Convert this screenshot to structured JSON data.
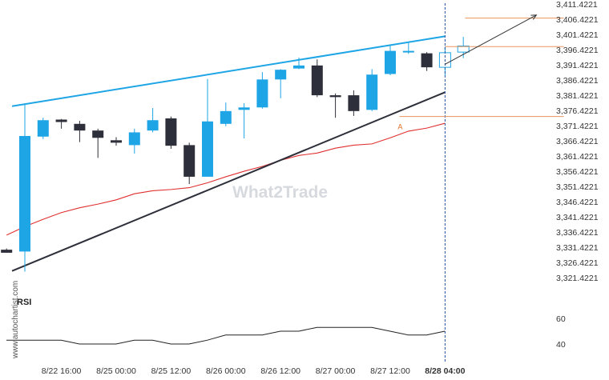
{
  "watermark": {
    "brand": "What2Trade",
    "side_text": "www.autochartist.com"
  },
  "rsi": {
    "title": "RSI",
    "ticks": [
      60,
      40
    ],
    "ylim": [
      30,
      70
    ],
    "values": [
      43,
      43,
      43,
      43,
      40,
      40,
      40,
      43,
      43,
      40,
      40,
      43,
      47,
      47,
      47,
      50,
      50,
      53,
      53,
      53,
      53,
      50,
      47,
      47,
      50
    ]
  },
  "chart_data": {
    "type": "candlestick",
    "ylim": [
      3317.4221,
      3413.4221
    ],
    "y_ticks": [
      "3,411.4221",
      "3,406.4221",
      "3,401.4221",
      "3,396.4221",
      "3,391.4221",
      "3,386.4221",
      "3,381.4221",
      "3,376.4221",
      "3,371.4221",
      "3,366.4221",
      "3,361.4221",
      "3,356.4221",
      "3,351.4221",
      "3,346.4221",
      "3,341.4221",
      "3,336.4221",
      "3,331.4221",
      "3,326.4221",
      "3,321.4221"
    ],
    "x_ticks": [
      {
        "label": "8/22 16:00",
        "index": 2
      },
      {
        "label": "8/25 00:00",
        "index": 5
      },
      {
        "label": "8/25 12:00",
        "index": 8
      },
      {
        "label": "8/26 00:00",
        "index": 11
      },
      {
        "label": "8/26 12:00",
        "index": 14
      },
      {
        "label": "8/27 00:00",
        "index": 17
      },
      {
        "label": "8/27 12:00",
        "index": 20
      },
      {
        "label": "8/28 04:00",
        "index": 23,
        "bold": true
      }
    ],
    "colors": {
      "up": "#1ea5e6",
      "down": "#2d2f3a",
      "ma": "#e03030",
      "upper_line": "#1ea5e6",
      "lower_line": "#2d2f3a",
      "level": "#e8955c",
      "projection": "#333333",
      "current": "#1e4fa0"
    },
    "candles": [
      {
        "o": 3330.6,
        "h": 3331.0,
        "l": 3329.6,
        "c": 3329.6
      },
      {
        "o": 3330.0,
        "h": 3378.6,
        "l": 3323.4,
        "c": 3368.0
      },
      {
        "o": 3367.8,
        "h": 3374.0,
        "l": 3367.0,
        "c": 3373.2
      },
      {
        "o": 3373.4,
        "h": 3373.6,
        "l": 3370.4,
        "c": 3372.6
      },
      {
        "o": 3372.0,
        "h": 3373.0,
        "l": 3366.0,
        "c": 3369.8
      },
      {
        "o": 3369.8,
        "h": 3370.4,
        "l": 3360.8,
        "c": 3367.4
      },
      {
        "o": 3366.6,
        "h": 3367.6,
        "l": 3364.8,
        "c": 3365.8
      },
      {
        "o": 3365.0,
        "h": 3370.4,
        "l": 3362.2,
        "c": 3369.2
      },
      {
        "o": 3369.8,
        "h": 3377.2,
        "l": 3369.2,
        "c": 3373.2
      },
      {
        "o": 3373.8,
        "h": 3374.4,
        "l": 3363.8,
        "c": 3364.8
      },
      {
        "o": 3365.0,
        "h": 3365.8,
        "l": 3352.2,
        "c": 3354.6
      },
      {
        "o": 3354.6,
        "h": 3386.8,
        "l": 3354.6,
        "c": 3372.8
      },
      {
        "o": 3372.0,
        "h": 3379.0,
        "l": 3371.2,
        "c": 3376.2
      },
      {
        "o": 3376.6,
        "h": 3378.8,
        "l": 3367.2,
        "c": 3377.4
      },
      {
        "o": 3377.4,
        "h": 3389.0,
        "l": 3377.0,
        "c": 3386.6
      },
      {
        "o": 3386.6,
        "h": 3390.0,
        "l": 3380.4,
        "c": 3389.8
      },
      {
        "o": 3390.2,
        "h": 3393.8,
        "l": 3390.0,
        "c": 3391.2
      },
      {
        "o": 3391.2,
        "h": 3393.2,
        "l": 3380.8,
        "c": 3381.4
      },
      {
        "o": 3381.4,
        "h": 3382.0,
        "l": 3374.0,
        "c": 3380.8
      },
      {
        "o": 3381.4,
        "h": 3383.0,
        "l": 3374.6,
        "c": 3376.2
      },
      {
        "o": 3376.6,
        "h": 3390.0,
        "l": 3376.2,
        "c": 3388.2
      },
      {
        "o": 3388.4,
        "h": 3398.0,
        "l": 3388.0,
        "c": 3396.0
      },
      {
        "o": 3396.0,
        "h": 3398.8,
        "l": 3395.0,
        "c": 3396.0
      },
      {
        "o": 3395.2,
        "h": 3395.6,
        "l": 3389.4,
        "c": 3390.6
      },
      {
        "o": 3390.6,
        "h": 3397.4,
        "l": 3388.0,
        "c": 3395.4
      },
      {
        "o": 3395.6,
        "h": 3400.6,
        "l": 3393.6,
        "c": 3397.6
      }
    ],
    "moving_average": [
      3335.4,
      3338.2,
      3340.6,
      3342.8,
      3344.4,
      3345.6,
      3347.0,
      3349.0,
      3350.0,
      3350.4,
      3351.0,
      3352.6,
      3354.6,
      3356.4,
      3358.0,
      3360.0,
      3361.6,
      3362.4,
      3364.0,
      3365.0,
      3365.4,
      3367.4,
      3369.6,
      3370.6,
      3372.2
    ],
    "trendlines": [
      {
        "name": "resistance",
        "from": [
          -0.7,
          3377.8
        ],
        "to": [
          23,
          3400.8
        ]
      },
      {
        "name": "support",
        "from": [
          -0.7,
          3323.6
        ],
        "to": [
          23,
          3382.4
        ]
      }
    ],
    "levels": [
      {
        "name": "target",
        "value": 3406.8,
        "from_index": 24.1,
        "to_index": 29.5
      },
      {
        "name": "entry",
        "value": 3397.4,
        "from_index": 23,
        "to_index": 29.5
      },
      {
        "name": "pattern",
        "value": 3374.4,
        "from_index": 20.5,
        "to_index": 29.5
      }
    ],
    "pattern_marker": {
      "label": "A",
      "index": 20.5,
      "value": 3372.4
    },
    "projection": {
      "from": [
        23,
        3391.6
      ],
      "to": [
        28,
        3407.8
      ]
    },
    "current_index": 23
  }
}
